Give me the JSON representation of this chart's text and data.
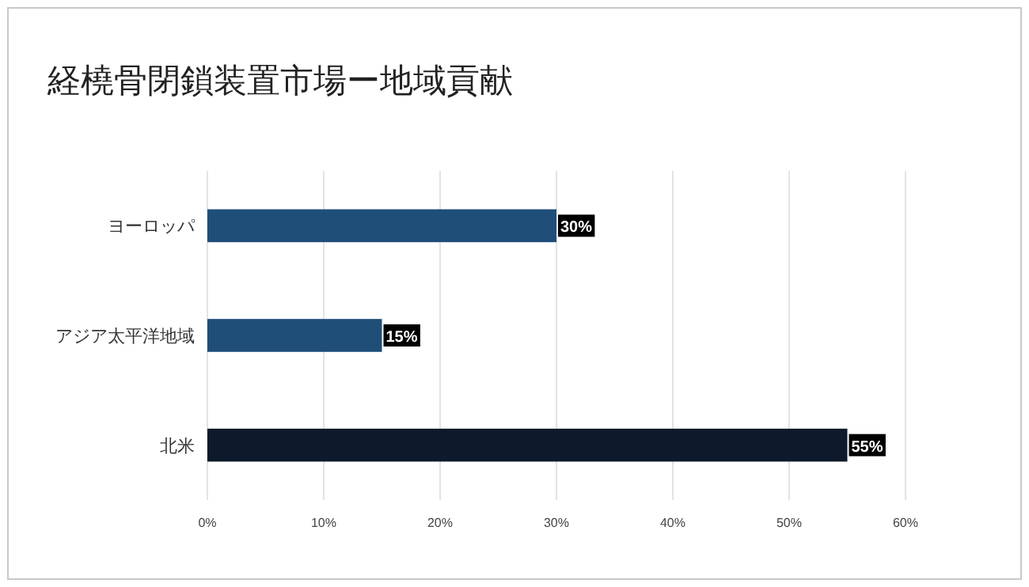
{
  "chart_data": {
    "type": "bar",
    "orientation": "horizontal",
    "title": "経橈骨閉鎖装置市場ー地域貢献",
    "categories": [
      "ヨーロッパ",
      "アジア太平洋地域",
      "北米"
    ],
    "values": [
      30,
      15,
      55
    ],
    "colors": [
      "#1f4e79",
      "#1f4e79",
      "#0e1a2b"
    ],
    "value_labels": [
      "30%",
      "15%",
      "55%"
    ],
    "xlim": [
      0,
      60
    ],
    "xticks": [
      {
        "value": 0,
        "label": "0%"
      },
      {
        "value": 10,
        "label": "10%"
      },
      {
        "value": 20,
        "label": "20%"
      },
      {
        "value": 30,
        "label": "30%"
      },
      {
        "value": 40,
        "label": "40%"
      },
      {
        "value": 50,
        "label": "50%"
      },
      {
        "value": 60,
        "label": "60%"
      }
    ],
    "grid": "x"
  }
}
